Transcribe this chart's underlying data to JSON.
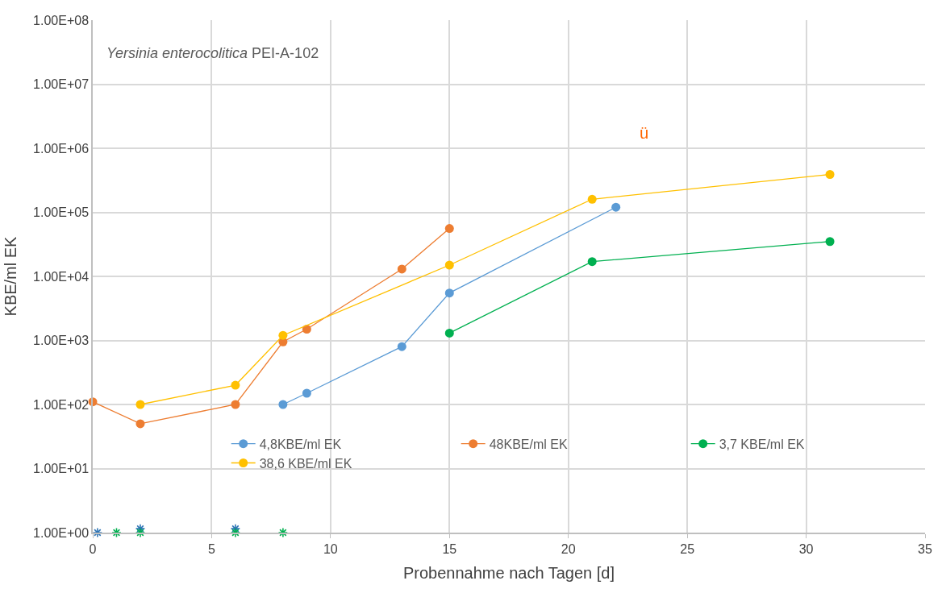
{
  "chart_data": {
    "type": "line",
    "title": "Yersinia enterocolitica PEI-A-102",
    "xlabel": "Probennahme nach Tagen [d]",
    "ylabel": "KBE/ml EK",
    "xlim": [
      0,
      35
    ],
    "xticks": [
      0,
      5,
      10,
      15,
      20,
      25,
      30,
      35
    ],
    "ylim": [
      1,
      100000000
    ],
    "yticks": [
      {
        "value": 1,
        "label": "1.00E+00"
      },
      {
        "value": 10,
        "label": "1.00E+01"
      },
      {
        "value": 100,
        "label": "1.00E+02"
      },
      {
        "value": 1000,
        "label": "1.00E+03"
      },
      {
        "value": 10000,
        "label": "1.00E+04"
      },
      {
        "value": 100000,
        "label": "1.00E+05"
      },
      {
        "value": 1000000,
        "label": "1.00E+06"
      },
      {
        "value": 10000000,
        "label": "1.00E+07"
      },
      {
        "value": 100000000,
        "label": "1.00E+08"
      }
    ],
    "log": "y",
    "grid": true,
    "legend": "bottom right",
    "marker": "circle",
    "line_style": "solid",
    "series": [
      {
        "name": "4,8KBE/ml EK",
        "color": "#5b9bd5",
        "x": [
          8,
          9,
          13,
          15,
          22
        ],
        "values": [
          100,
          150,
          800,
          5500,
          120000
        ]
      },
      {
        "name": "48KBE/ml EK",
        "color": "#ed7d31",
        "x": [
          0,
          2,
          6,
          8,
          9,
          13,
          15
        ],
        "values": [
          110,
          50,
          100,
          950,
          1500,
          13000,
          56000
        ]
      },
      {
        "name": "3,7 KBE/ml EK",
        "color": "#00b050",
        "x": [
          15,
          21,
          31
        ],
        "values": [
          1300,
          17000,
          35000
        ]
      },
      {
        "name": "38,6 KBE/ml EK",
        "color": "#ffc000",
        "x": [
          2,
          6,
          8,
          15,
          21,
          31
        ],
        "values": [
          100,
          200,
          1200,
          15000,
          160000,
          390000
        ]
      },
      {
        "type": "scatter",
        "marker": "cross",
        "color": "#2e75b6",
        "x": [
          0.2,
          2,
          6
        ],
        "values": [
          1,
          1.15,
          1.15
        ]
      },
      {
        "type": "scatter",
        "marker": "cross",
        "color": "#00b050",
        "x": [
          1,
          2,
          6,
          8
        ],
        "values": [
          1,
          1,
          1,
          1
        ]
      }
    ],
    "annotations": [
      "ü"
    ]
  }
}
